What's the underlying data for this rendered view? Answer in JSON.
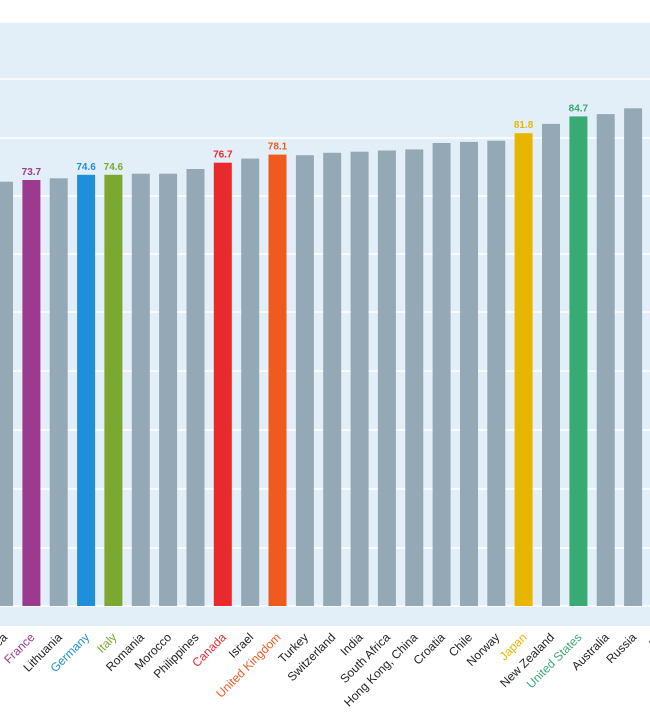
{
  "chart_data": {
    "type": "bar",
    "categories": [
      "ca",
      "France",
      "Lithuania",
      "Germany",
      "Italy",
      "Romania",
      "Morocco",
      "Philippines",
      "Canada",
      "Israel",
      "United Kingdom",
      "Turkey",
      "Switzerland",
      "India",
      "South Africa",
      "Hong Kong, China",
      "Croatia",
      "Chile",
      "Norway",
      "Japan",
      "New Zealand",
      "United States",
      "Australia",
      "Russia",
      "Pe"
    ],
    "values": [
      73.4,
      73.7,
      74.0,
      74.6,
      74.6,
      74.8,
      74.8,
      75.6,
      76.7,
      77.4,
      78.1,
      78.0,
      78.4,
      78.6,
      78.8,
      79.0,
      80.1,
      80.3,
      80.5,
      81.8,
      83.4,
      84.7,
      85.1,
      86.1,
      null
    ],
    "data_labels": [
      null,
      "73.7",
      null,
      "74.6",
      "74.6",
      null,
      null,
      null,
      "76.7",
      null,
      "78.1",
      null,
      null,
      null,
      null,
      null,
      null,
      null,
      null,
      "81.8",
      null,
      "84.7",
      null,
      null,
      null
    ],
    "highlight_colors": {
      "France": "#9b3a8e",
      "Germany": "#1f8fd9",
      "Italy": "#7aa830",
      "Canada": "#e8292e",
      "United Kingdom": "#ef5a1e",
      "Japan": "#e8b600",
      "United States": "#3aaa75"
    },
    "default_bar_color": "#95a8b5",
    "default_label_color": "#222222",
    "plot_background": "#e2eff8",
    "grid": true,
    "title": "",
    "xlabel": "",
    "ylabel": ""
  }
}
